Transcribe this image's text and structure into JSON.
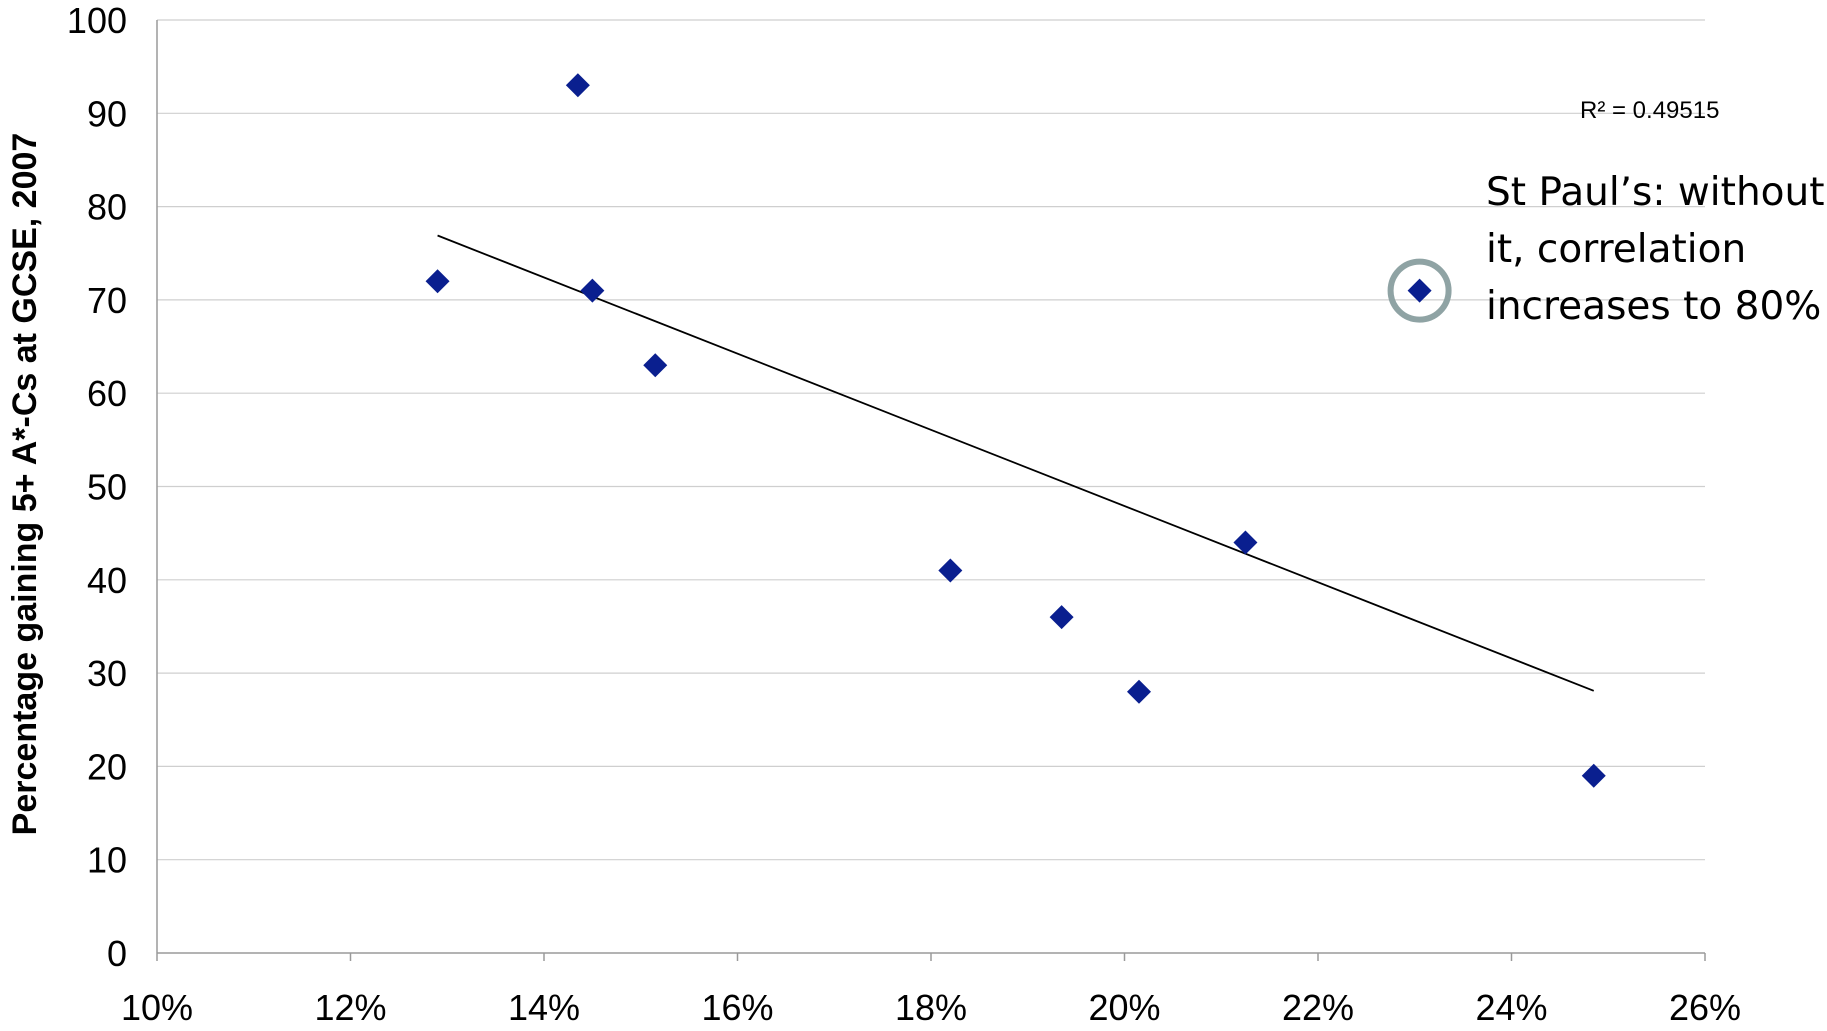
{
  "chart_data": {
    "type": "scatter",
    "title": "",
    "xlabel": "",
    "ylabel": "Percentage gaining 5+ A*-Cs at GCSE, 2007",
    "xlim": [
      0.1,
      0.26
    ],
    "ylim": [
      0,
      100
    ],
    "x_ticks": [
      0.1,
      0.12,
      0.14,
      0.16,
      0.18,
      0.2,
      0.22,
      0.24,
      0.26
    ],
    "x_tick_labels": [
      "10%",
      "12%",
      "14%",
      "16%",
      "18%",
      "20%",
      "22%",
      "24%",
      "26%"
    ],
    "y_ticks": [
      0,
      10,
      20,
      30,
      40,
      50,
      60,
      70,
      80,
      90,
      100
    ],
    "y_tick_labels": [
      "0",
      "10",
      "20",
      "30",
      "40",
      "50",
      "60",
      "70",
      "80",
      "90",
      "100"
    ],
    "grid": "horizontal",
    "legend": "none",
    "series": [
      {
        "points": [
          {
            "x": 0.129,
            "y": 72
          },
          {
            "x": 0.1435,
            "y": 93
          },
          {
            "x": 0.145,
            "y": 71
          },
          {
            "x": 0.1515,
            "y": 63
          },
          {
            "x": 0.182,
            "y": 41
          },
          {
            "x": 0.1935,
            "y": 36
          },
          {
            "x": 0.2015,
            "y": 28
          },
          {
            "x": 0.2125,
            "y": 44
          },
          {
            "x": 0.2305,
            "y": 71
          },
          {
            "x": 0.2485,
            "y": 19
          }
        ],
        "color": "#0a1f8f",
        "marker": "diamond"
      }
    ],
    "trendline": {
      "type": "linear",
      "from": {
        "x": 0.129,
        "y": 76.9
      },
      "to": {
        "x": 0.2485,
        "y": 28.1
      },
      "color": "#000000",
      "r2_label": "R² = 0.49515"
    },
    "highlight": {
      "point_index": 8,
      "color": "#8fa3a4"
    },
    "annotation": {
      "lines": [
        "St Paul’s: without",
        "it, correlation",
        "increases to 80%"
      ]
    }
  }
}
